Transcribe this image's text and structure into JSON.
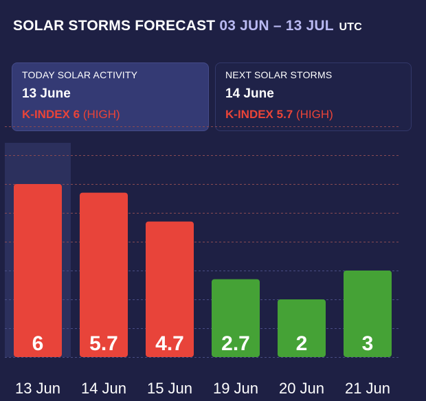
{
  "header": {
    "title": "SOLAR STORMS FORECAST",
    "range": "03 JUN – 13 JUL",
    "tz": "UTC"
  },
  "cards": {
    "today": {
      "label": "TODAY SOLAR ACTIVITY",
      "date": "13 June",
      "kindex": "K-INDEX 6",
      "level": "(HIGH)"
    },
    "next": {
      "label": "NEXT SOLAR STORMS",
      "date": "14 June",
      "kindex": "K-INDEX 5.7",
      "level": "(HIGH)"
    }
  },
  "colors": {
    "high": "#e8443a",
    "low": "#45a236",
    "highlight": "#2e3260",
    "grid_high": "#8a4a52",
    "grid_low": "#4a4e85"
  },
  "chart_data": {
    "type": "bar",
    "categories": [
      "13 Jun",
      "14 Jun",
      "15 Jun",
      "19 Jun",
      "20 Jun",
      "21 Jun"
    ],
    "values": [
      6,
      5.7,
      4.7,
      2.7,
      2,
      3
    ],
    "value_labels": [
      "6",
      "5.7",
      "4.7",
      "2.7",
      "2",
      "3"
    ],
    "levels": [
      "high",
      "high",
      "high",
      "low",
      "low",
      "low"
    ],
    "ylim": [
      0,
      8
    ],
    "grid": true,
    "highlighted_category": "13 Jun"
  }
}
